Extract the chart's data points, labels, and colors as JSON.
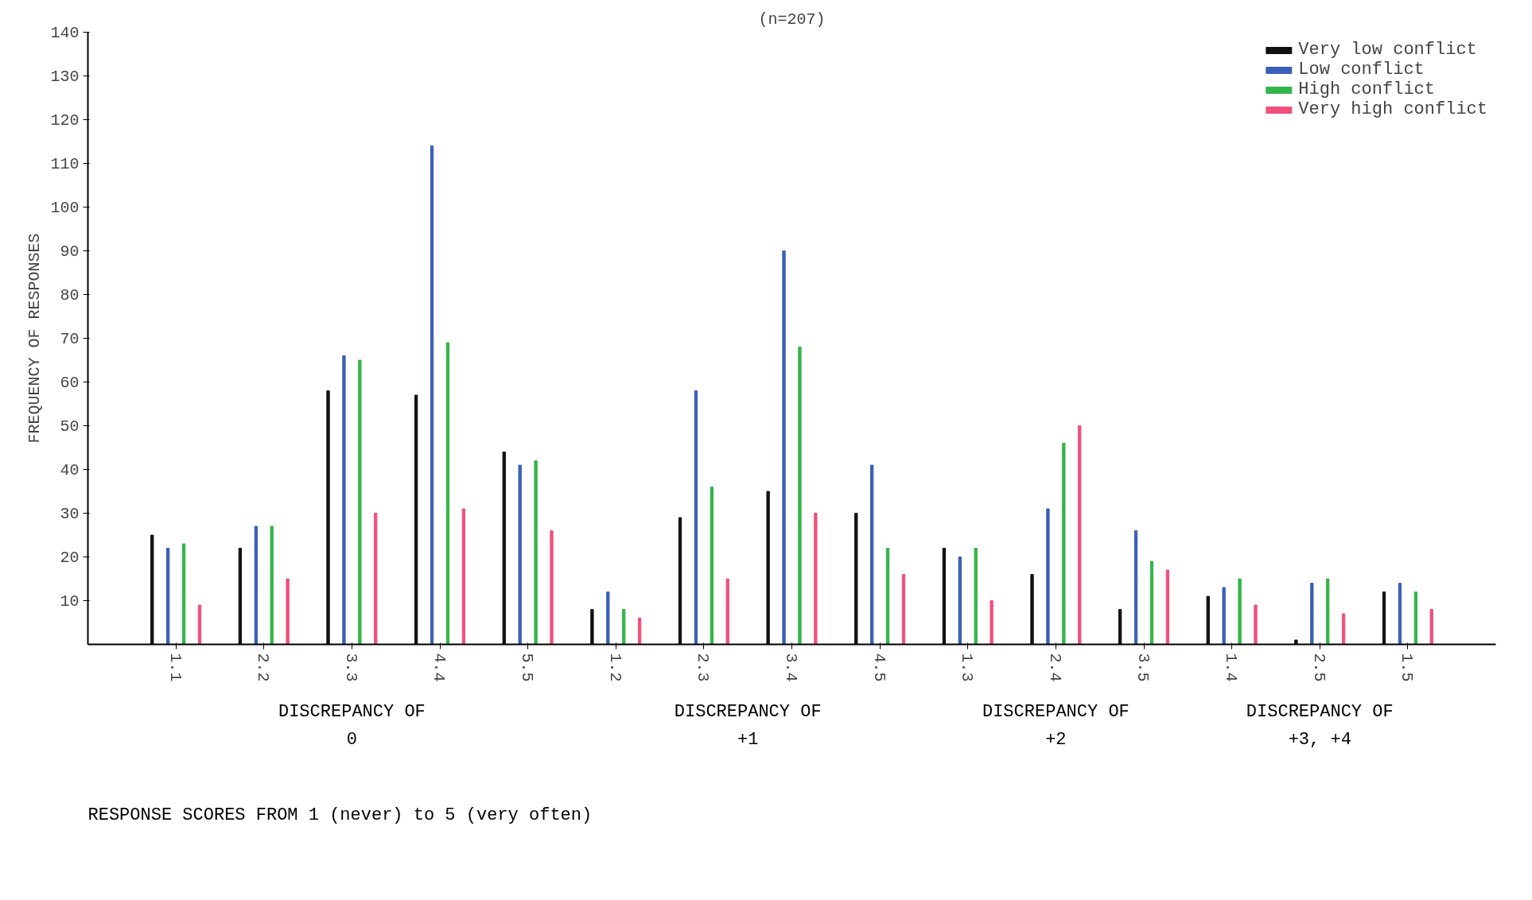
{
  "chart_data": {
    "type": "bar",
    "title": "(n=207)",
    "ylabel": "FREQUENCY OF RESPONSES",
    "categories": [
      "1.1",
      "2.2",
      "3.3",
      "4.4",
      "5.5",
      "1.2",
      "2.3",
      "3.4",
      "4.5",
      "1.3",
      "2.4",
      "3.5",
      "1.4",
      "2.5",
      "1.5"
    ],
    "series": [
      {
        "name": "Very low conflict",
        "color": "#111111",
        "values": [
          25,
          22,
          58,
          57,
          44,
          8,
          29,
          35,
          30,
          22,
          16,
          8,
          11,
          1,
          12
        ]
      },
      {
        "name": "Low conflict",
        "color": "#3a5fb8",
        "values": [
          22,
          27,
          66,
          114,
          41,
          12,
          58,
          90,
          41,
          20,
          31,
          26,
          13,
          14,
          14
        ]
      },
      {
        "name": "High conflict",
        "color": "#33b54a",
        "values": [
          23,
          27,
          65,
          69,
          42,
          8,
          36,
          68,
          22,
          22,
          46,
          19,
          15,
          15,
          12
        ]
      },
      {
        "name": "Very high conflict",
        "color": "#f0507a",
        "values": [
          9,
          15,
          30,
          31,
          26,
          6,
          15,
          30,
          16,
          10,
          50,
          17,
          9,
          7,
          8
        ]
      }
    ],
    "annotations": [
      "DISCREPANCY OF 0",
      "DISCREPANCY OF +1",
      "DISCREPANCY OF +2",
      "DISCREPANCY OF +3, +4",
      "RESPONSE SCORES FROM 1 (never) to 5 (very often)"
    ],
    "ylim": [
      0,
      140
    ],
    "yticks": [
      10,
      20,
      30,
      40,
      50,
      60,
      70,
      80,
      90,
      100,
      110,
      120,
      130,
      140
    ],
    "legend": "top right",
    "grid": false
  }
}
